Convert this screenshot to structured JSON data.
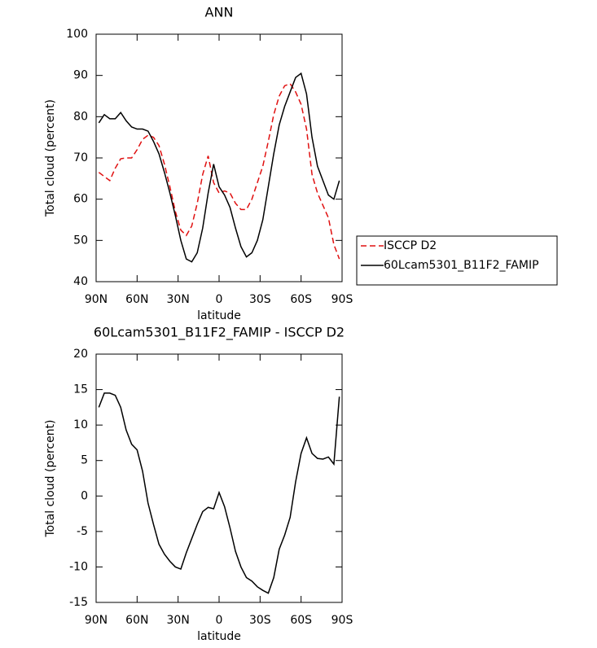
{
  "chart_data": [
    {
      "type": "line",
      "title": "ANN",
      "x_label": "latitude",
      "y_label": "Total cloud (percent)",
      "x": [
        88,
        84,
        80,
        76,
        72,
        68,
        64,
        60,
        56,
        52,
        48,
        44,
        40,
        36,
        32,
        28,
        24,
        20,
        16,
        12,
        8,
        4,
        0,
        -4,
        -8,
        -12,
        -16,
        -20,
        -24,
        -28,
        -32,
        -36,
        -40,
        -44,
        -48,
        -52,
        -56,
        -60,
        -64,
        -68,
        -72,
        -76,
        -80,
        -84,
        -88
      ],
      "series": [
        {
          "name": "ISCCP D2",
          "color": "#e01010",
          "line_style": "dashed",
          "values": [
            66.5,
            65.5,
            64.5,
            67.5,
            69.8,
            70,
            70,
            72,
            74.5,
            75.5,
            75,
            73,
            68.5,
            63,
            57,
            52.5,
            51.2,
            53.5,
            59,
            66,
            70.5,
            64,
            61.5,
            62,
            61.5,
            59,
            57.5,
            57.5,
            60,
            64,
            68,
            74,
            80.5,
            85,
            87.5,
            88,
            86,
            83,
            77,
            66,
            61.5,
            58.5,
            55.5,
            49,
            45.5
          ]
        },
        {
          "name": "60Lcam5301_B11F2_FAMIP",
          "color": "#000000",
          "line_style": "solid",
          "values": [
            78.5,
            80.5,
            79.5,
            79.5,
            81,
            79,
            77.5,
            77,
            77,
            76.5,
            74,
            71,
            66.5,
            61.5,
            56,
            50,
            45.5,
            44.8,
            47,
            53,
            61.5,
            68.5,
            63,
            61,
            58,
            53,
            48.5,
            46,
            47,
            50,
            55,
            63,
            71,
            78,
            82.5,
            86,
            89.5,
            90.5,
            85.5,
            75,
            68,
            64.5,
            61,
            60,
            64.5
          ]
        }
      ],
      "xlim": [
        90,
        -90
      ],
      "xticks": [
        {
          "value": 90,
          "label": "90N"
        },
        {
          "value": 60,
          "label": "60N"
        },
        {
          "value": 30,
          "label": "30N"
        },
        0,
        {
          "value": -30,
          "label": "30S"
        },
        {
          "value": -60,
          "label": "60S"
        },
        {
          "value": -90,
          "label": "90S"
        }
      ],
      "ylim": [
        40,
        100
      ],
      "yticks": [
        40,
        50,
        60,
        70,
        80,
        90,
        100
      ],
      "legend": "right"
    },
    {
      "type": "line",
      "title": "60Lcam5301_B11F2_FAMIP - ISCCP D2",
      "x_label": "latitude",
      "y_label": "Total cloud (percent)",
      "x": [
        88,
        84,
        80,
        76,
        72,
        68,
        64,
        60,
        56,
        52,
        48,
        44,
        40,
        36,
        32,
        28,
        24,
        20,
        16,
        12,
        8,
        4,
        0,
        -4,
        -8,
        -12,
        -16,
        -20,
        -24,
        -28,
        -32,
        -36,
        -40,
        -44,
        -48,
        -52,
        -56,
        -60,
        -64,
        -68,
        -72,
        -76,
        -80,
        -84,
        -88
      ],
      "values": [
        12.5,
        14.5,
        14.5,
        14.2,
        12.5,
        9.3,
        7.3,
        6.5,
        3.5,
        -1,
        -4,
        -6.8,
        -8.2,
        -9.2,
        -10,
        -10.3,
        -8,
        -6,
        -4,
        -2.2,
        -1.6,
        -1.8,
        0.5,
        -1.5,
        -4.5,
        -7.8,
        -10,
        -11.5,
        -12,
        -12.8,
        -13.3,
        -13.7,
        -11.5,
        -7.5,
        -5.5,
        -3,
        2,
        6,
        8.2,
        6,
        5.3,
        5.2,
        5.5,
        4.5,
        14
      ],
      "color": "#000000",
      "line_style": "solid",
      "xlim": [
        90,
        -90
      ],
      "xticks": [
        {
          "value": 90,
          "label": "90N"
        },
        {
          "value": 60,
          "label": "60N"
        },
        {
          "value": 30,
          "label": "30N"
        },
        0,
        {
          "value": -30,
          "label": "30S"
        },
        {
          "value": -60,
          "label": "60S"
        },
        {
          "value": -90,
          "label": "90S"
        }
      ],
      "ylim": [
        -15,
        20
      ],
      "yticks": [
        -15,
        -10,
        -5,
        0,
        5,
        10,
        15,
        20
      ]
    }
  ]
}
